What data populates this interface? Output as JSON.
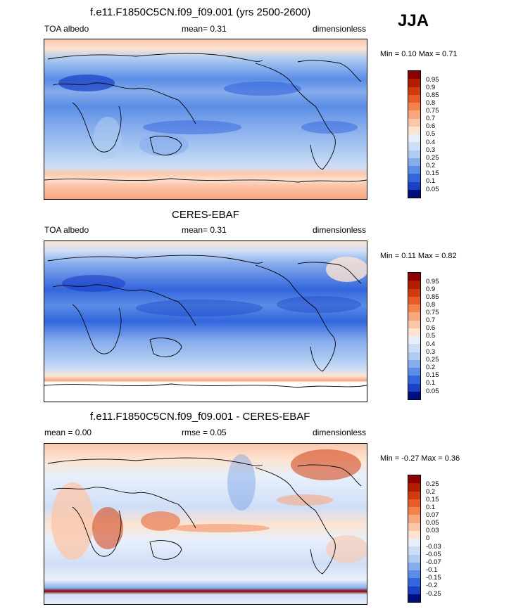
{
  "season": "JJA",
  "panels": [
    {
      "title": "f.e11.F1850C5CN.f09_f09.001 (yrs 2500-2600)",
      "left_label": "TOA albedo",
      "center_label": "mean=   0.31",
      "right_label": "dimensionless",
      "minmax": "Min =   0.10 Max =   0.71",
      "colorbar": {
        "labels": [
          "0.95",
          "0.9",
          "0.85",
          "0.8",
          "0.75",
          "0.7",
          "0.6",
          "0.5",
          "0.4",
          "0.3",
          "0.25",
          "0.2",
          "0.15",
          "0.1",
          "0.05"
        ],
        "colors": [
          "#8b0000",
          "#b01c00",
          "#d23a0c",
          "#e85c2a",
          "#f4824c",
          "#f8a680",
          "#fbc7ab",
          "#fce3d2",
          "#e8f0fb",
          "#cfdef7",
          "#aecbf1",
          "#86acec",
          "#5a8de6",
          "#3366dd",
          "#1a40c8",
          "#000f7a"
        ]
      }
    },
    {
      "title": "CERES-EBAF",
      "left_label": "TOA albedo",
      "center_label": "mean=   0.31",
      "right_label": "dimensionless",
      "minmax": "Min =   0.11 Max =   0.82",
      "colorbar": {
        "labels": [
          "0.95",
          "0.9",
          "0.85",
          "0.8",
          "0.75",
          "0.7",
          "0.6",
          "0.5",
          "0.4",
          "0.3",
          "0.25",
          "0.2",
          "0.15",
          "0.1",
          "0.05"
        ],
        "colors": [
          "#8b0000",
          "#b01c00",
          "#d23a0c",
          "#e85c2a",
          "#f4824c",
          "#f8a680",
          "#fbc7ab",
          "#fce3d2",
          "#e8f0fb",
          "#cfdef7",
          "#aecbf1",
          "#86acec",
          "#5a8de6",
          "#3366dd",
          "#1a40c8",
          "#000f7a"
        ]
      }
    },
    {
      "title": "f.e11.F1850C5CN.f09_f09.001 - CERES-EBAF",
      "left_label": "mean =   0.00",
      "center_label": "rmse =   0.05",
      "right_label": "dimensionless",
      "minmax": "Min =  -0.27 Max =   0.36",
      "colorbar": {
        "labels": [
          "0.25",
          "0.2",
          "0.15",
          "0.1",
          "0.07",
          "0.05",
          "0.03",
          "0",
          "-0.03",
          "-0.05",
          "-0.07",
          "-0.1",
          "-0.15",
          "-0.2",
          "-0.25"
        ],
        "colors": [
          "#8b0000",
          "#b01c00",
          "#d23a0c",
          "#e85c2a",
          "#f4824c",
          "#f8a680",
          "#fbc7ab",
          "#fce3d2",
          "#e8f0fb",
          "#cfdef7",
          "#aecbf1",
          "#86acec",
          "#5a8de6",
          "#3366dd",
          "#1a40c8",
          "#000f7a"
        ]
      }
    }
  ]
}
